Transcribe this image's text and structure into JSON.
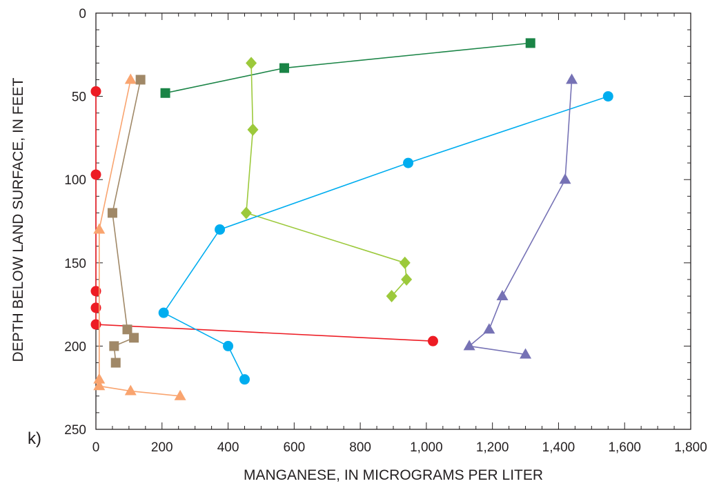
{
  "chart_data": {
    "type": "scatter",
    "panel_label": "k)",
    "xlabel": "MANGANESE, IN MICROGRAMS PER LITER",
    "ylabel": "DEPTH BELOW LAND SURFACE, IN FEET",
    "xlim": [
      0,
      1800
    ],
    "ylim": [
      0,
      250
    ],
    "y_inverted": true,
    "x_ticks": [
      0,
      200,
      400,
      600,
      800,
      1000,
      1200,
      1400,
      1600,
      1800
    ],
    "x_tick_labels": [
      "0",
      "200",
      "400",
      "600",
      "800",
      "1,000",
      "1,200",
      "1,400",
      "1,600",
      "1,800"
    ],
    "y_ticks": [
      0,
      50,
      100,
      150,
      200,
      250
    ],
    "y_tick_labels": [
      "0",
      "50",
      "100",
      "150",
      "200",
      "250"
    ],
    "grid": false,
    "series": [
      {
        "color": "#ed1c24",
        "marker": "circle",
        "points": [
          [
            0,
            47
          ],
          [
            0,
            97
          ],
          [
            0,
            167
          ],
          [
            0,
            177
          ],
          [
            0,
            187
          ],
          [
            1020,
            197
          ]
        ]
      },
      {
        "color": "#f9a46f",
        "marker": "triangle",
        "points": [
          [
            105,
            40
          ],
          [
            10,
            130
          ],
          [
            10,
            220
          ],
          [
            10,
            224
          ],
          [
            105,
            227
          ],
          [
            255,
            230
          ]
        ]
      },
      {
        "color": "#a08867",
        "marker": "square",
        "points": [
          [
            135,
            40
          ],
          [
            50,
            120
          ],
          [
            95,
            190
          ],
          [
            115,
            195
          ],
          [
            55,
            200
          ],
          [
            60,
            210
          ]
        ]
      },
      {
        "color": "#1a8446",
        "marker": "square",
        "points": [
          [
            1315,
            18
          ],
          [
            570,
            33
          ],
          [
            210,
            48
          ]
        ]
      },
      {
        "color": "#9cc93b",
        "marker": "diamond",
        "points": [
          [
            470,
            30
          ],
          [
            475,
            70
          ],
          [
            455,
            120
          ],
          [
            935,
            150
          ],
          [
            940,
            160
          ],
          [
            895,
            170
          ]
        ]
      },
      {
        "color": "#00adef",
        "marker": "circle",
        "points": [
          [
            1550,
            50
          ],
          [
            945,
            90
          ],
          [
            375,
            130
          ],
          [
            205,
            180
          ],
          [
            400,
            200
          ],
          [
            450,
            220
          ]
        ]
      },
      {
        "color": "#7672b5",
        "marker": "triangle",
        "points": [
          [
            1440,
            40
          ],
          [
            1420,
            100
          ],
          [
            1230,
            170
          ],
          [
            1190,
            190
          ],
          [
            1130,
            200
          ],
          [
            1300,
            205
          ]
        ]
      }
    ]
  }
}
